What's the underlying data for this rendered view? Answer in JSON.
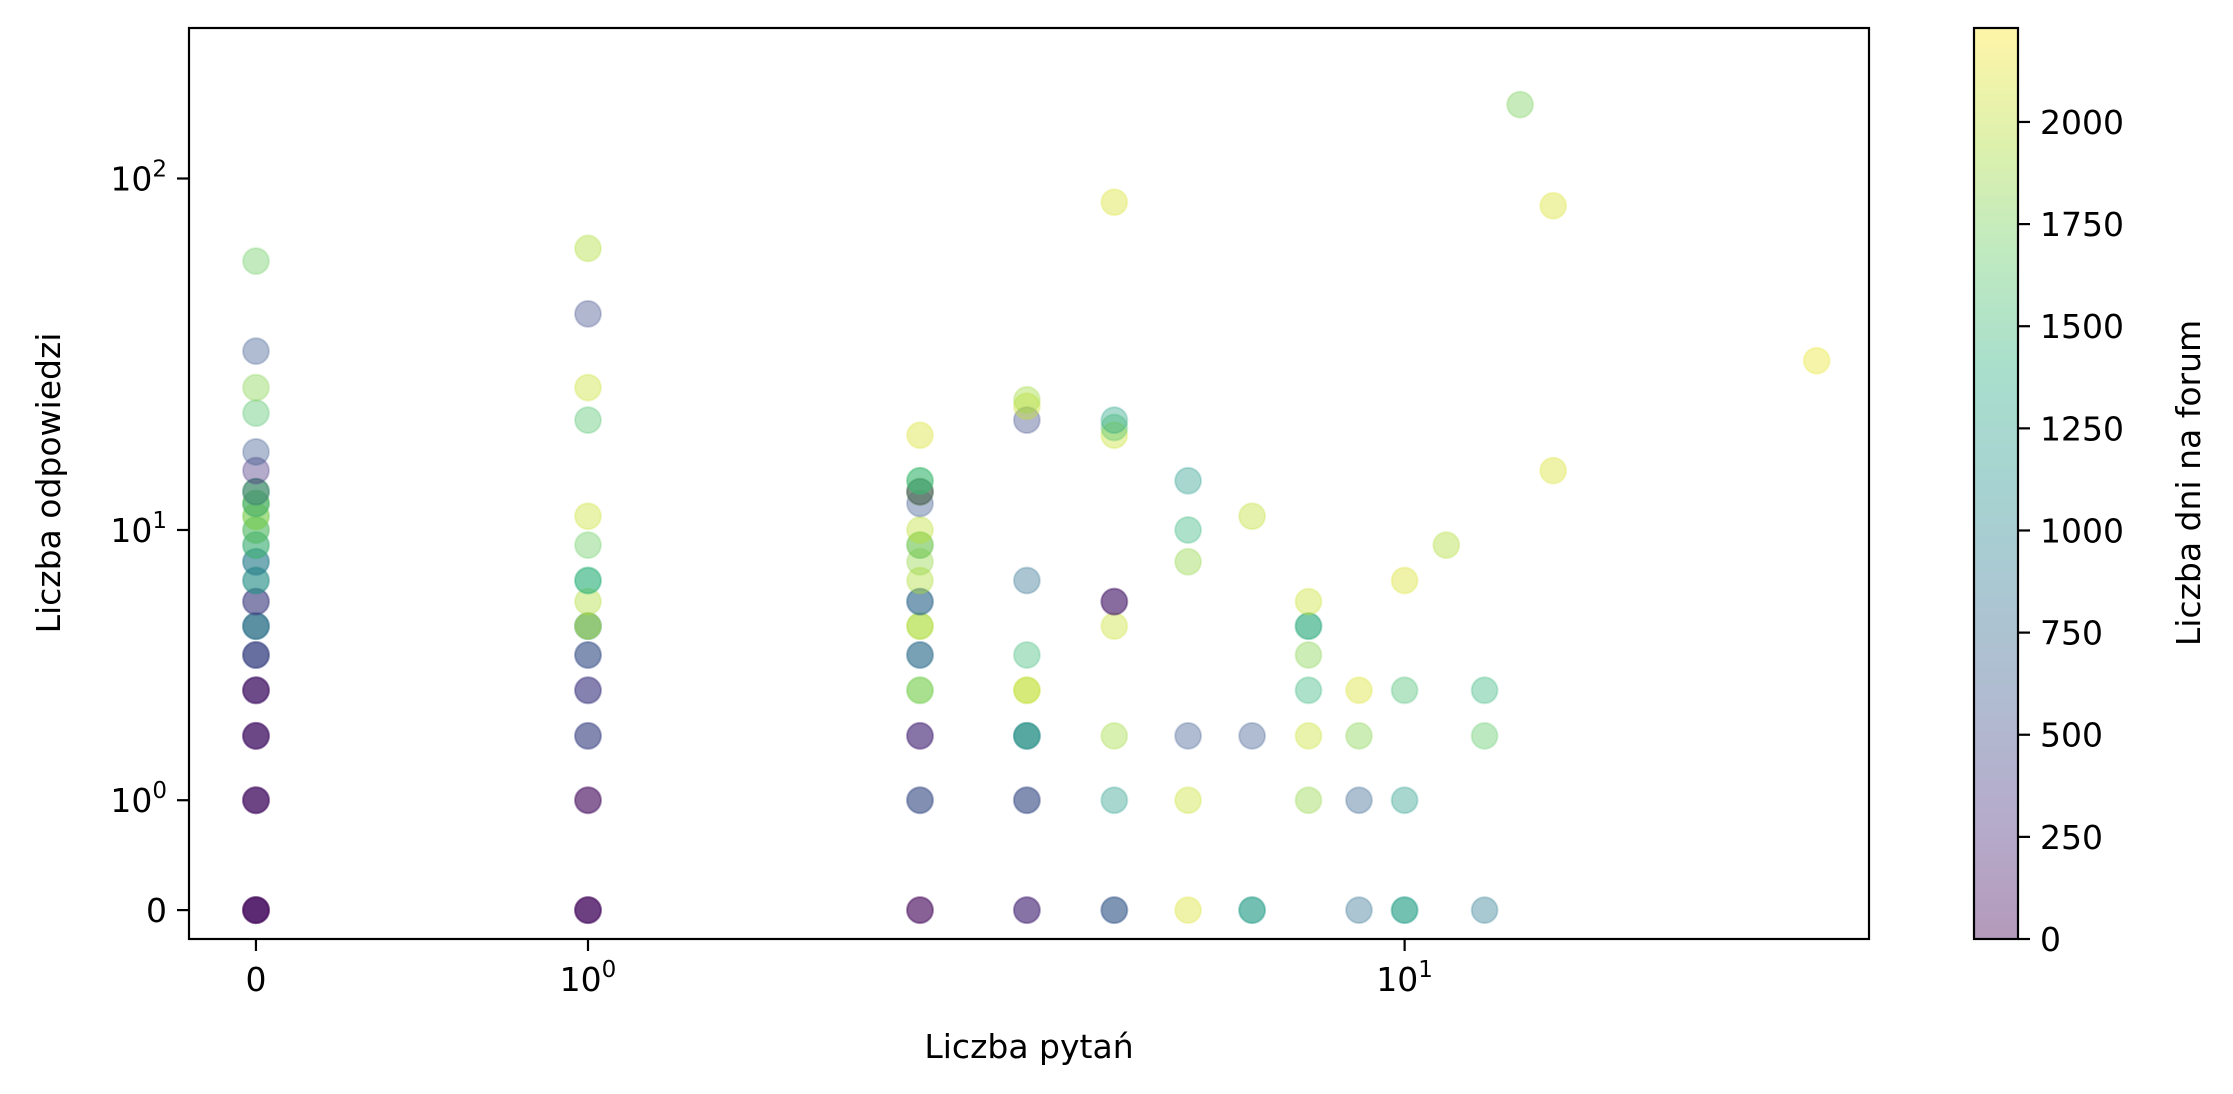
{
  "chart_data": {
    "type": "scatter",
    "title": "",
    "xlabel": "Liczba pytań",
    "ylabel": "Liczba odpowiedzi",
    "xscale": "symlog",
    "yscale": "symlog",
    "xlim": [
      -0.15,
      28
    ],
    "ylim": [
      -0.2,
      260
    ],
    "xticks": [
      {
        "value": 0,
        "base": "0",
        "exp": ""
      },
      {
        "value": 1,
        "base": "10",
        "exp": "0"
      },
      {
        "value": 10,
        "base": "10",
        "exp": "1"
      }
    ],
    "yticks": [
      {
        "value": 0,
        "base": "0",
        "exp": ""
      },
      {
        "value": 1,
        "base": "10",
        "exp": "0"
      },
      {
        "value": 10,
        "base": "10",
        "exp": "1"
      },
      {
        "value": 100,
        "base": "10",
        "exp": "2"
      }
    ],
    "grid": false,
    "marker_alpha": 0.4,
    "colormap": "viridis",
    "colorbar": {
      "label": "Liczba dni na forum",
      "min": 0,
      "max": 2230,
      "ticks": [
        "0",
        "250",
        "500",
        "750",
        "1000",
        "1250",
        "1500",
        "1750",
        "2000"
      ]
    },
    "points": [
      [
        0,
        0,
        20
      ],
      [
        0,
        0,
        60
      ],
      [
        0,
        0,
        120
      ],
      [
        0,
        0,
        40
      ],
      [
        0,
        1,
        30
      ],
      [
        0,
        1,
        90
      ],
      [
        0,
        1,
        150
      ],
      [
        0,
        2,
        50
      ],
      [
        0,
        2,
        100
      ],
      [
        0,
        2,
        180
      ],
      [
        0,
        3,
        150
      ],
      [
        0,
        3,
        260
      ],
      [
        0,
        3,
        80
      ],
      [
        0,
        4,
        500
      ],
      [
        0,
        4,
        600
      ],
      [
        0,
        4,
        400
      ],
      [
        0,
        5,
        600
      ],
      [
        0,
        5,
        1200
      ],
      [
        0,
        5,
        700
      ],
      [
        0,
        6,
        650
      ],
      [
        0,
        6,
        300
      ],
      [
        0,
        7,
        800
      ],
      [
        0,
        7,
        1300
      ],
      [
        0,
        8,
        700
      ],
      [
        0,
        8,
        1100
      ],
      [
        0,
        9,
        1100
      ],
      [
        0,
        9,
        1600
      ],
      [
        0,
        10,
        1200
      ],
      [
        0,
        10,
        1750
      ],
      [
        0,
        11,
        1500
      ],
      [
        0,
        11,
        1900
      ],
      [
        0,
        12,
        1700
      ],
      [
        0,
        12,
        1900
      ],
      [
        0,
        12,
        1200
      ],
      [
        0,
        13,
        1500
      ],
      [
        0,
        13,
        1800
      ],
      [
        0,
        13,
        700
      ],
      [
        0,
        15,
        300
      ],
      [
        0,
        17,
        600
      ],
      [
        0,
        22,
        1600
      ],
      [
        0,
        26,
        1800
      ],
      [
        0,
        33,
        600
      ],
      [
        0,
        59,
        1700
      ],
      [
        1,
        0,
        20
      ],
      [
        1,
        0,
        60
      ],
      [
        1,
        0,
        100
      ],
      [
        1,
        1,
        40
      ],
      [
        1,
        1,
        100
      ],
      [
        1,
        2,
        400
      ],
      [
        1,
        2,
        500
      ],
      [
        1,
        3,
        300
      ],
      [
        1,
        3,
        450
      ],
      [
        1,
        4,
        500
      ],
      [
        1,
        4,
        600
      ],
      [
        1,
        5,
        700
      ],
      [
        1,
        5,
        1400
      ],
      [
        1,
        5,
        2000
      ],
      [
        1,
        6,
        1950
      ],
      [
        1,
        7,
        1500
      ],
      [
        1,
        7,
        1400
      ],
      [
        1,
        9,
        1700
      ],
      [
        1,
        11,
        2050
      ],
      [
        1,
        21,
        1600
      ],
      [
        1,
        26,
        2050
      ],
      [
        1,
        42,
        500
      ],
      [
        1,
        64,
        1950
      ],
      [
        3,
        0,
        20
      ],
      [
        3,
        0,
        60
      ],
      [
        3,
        1,
        450
      ],
      [
        3,
        1,
        600
      ],
      [
        3,
        2,
        150
      ],
      [
        3,
        2,
        300
      ],
      [
        3,
        3,
        1700
      ],
      [
        3,
        3,
        1800
      ],
      [
        3,
        4,
        600
      ],
      [
        3,
        4,
        900
      ],
      [
        3,
        5,
        1850
      ],
      [
        3,
        5,
        2000
      ],
      [
        3,
        6,
        700
      ],
      [
        3,
        6,
        800
      ],
      [
        3,
        7,
        1950
      ],
      [
        3,
        8,
        1850
      ],
      [
        3,
        9,
        1300
      ],
      [
        3,
        9,
        1900
      ],
      [
        3,
        10,
        2000
      ],
      [
        3,
        12,
        600
      ],
      [
        3,
        13,
        1600
      ],
      [
        3,
        13,
        1800
      ],
      [
        3,
        13,
        200
      ],
      [
        3,
        14,
        1700
      ],
      [
        3,
        14,
        1400
      ],
      [
        3,
        19,
        2100
      ],
      [
        4,
        0,
        120
      ],
      [
        4,
        0,
        300
      ],
      [
        4,
        1,
        450
      ],
      [
        4,
        1,
        600
      ],
      [
        4,
        2,
        600
      ],
      [
        4,
        2,
        1100
      ],
      [
        4,
        2,
        1300
      ],
      [
        4,
        3,
        1950
      ],
      [
        4,
        3,
        2050
      ],
      [
        4,
        4,
        1500
      ],
      [
        4,
        7,
        800
      ],
      [
        4,
        21,
        500
      ],
      [
        4,
        23,
        2050
      ],
      [
        4,
        24,
        1900
      ],
      [
        5,
        0,
        500
      ],
      [
        5,
        0,
        700
      ],
      [
        5,
        1,
        1200
      ],
      [
        5,
        2,
        1900
      ],
      [
        5,
        5,
        2050
      ],
      [
        5,
        6,
        250
      ],
      [
        5,
        6,
        100
      ],
      [
        5,
        19,
        2050
      ],
      [
        5,
        20,
        1600
      ],
      [
        5,
        21,
        1300
      ],
      [
        5,
        86,
        2100
      ],
      [
        6,
        0,
        2100
      ],
      [
        6,
        1,
        2050
      ],
      [
        6,
        2,
        600
      ],
      [
        6,
        8,
        1850
      ],
      [
        6,
        10,
        1450
      ],
      [
        6,
        14,
        1200
      ],
      [
        7,
        0,
        1100
      ],
      [
        7,
        0,
        1300
      ],
      [
        7,
        2,
        600
      ],
      [
        7,
        11,
        2000
      ],
      [
        8,
        1,
        1850
      ],
      [
        8,
        2,
        2050
      ],
      [
        8,
        3,
        1450
      ],
      [
        8,
        4,
        1800
      ],
      [
        8,
        5,
        1500
      ],
      [
        8,
        5,
        1300
      ],
      [
        8,
        6,
        2050
      ],
      [
        9,
        0,
        800
      ],
      [
        9,
        1,
        700
      ],
      [
        9,
        2,
        1800
      ],
      [
        9,
        3,
        2100
      ],
      [
        10,
        0,
        1300
      ],
      [
        10,
        0,
        1200
      ],
      [
        10,
        1,
        1200
      ],
      [
        10,
        3,
        1550
      ],
      [
        10,
        7,
        2100
      ],
      [
        11,
        9,
        1950
      ],
      [
        12,
        0,
        900
      ],
      [
        12,
        2,
        1650
      ],
      [
        12,
        3,
        1450
      ],
      [
        13,
        160,
        1750
      ],
      [
        14,
        15,
        2100
      ],
      [
        14,
        84,
        2100
      ],
      [
        25,
        31,
        2150
      ]
    ]
  }
}
